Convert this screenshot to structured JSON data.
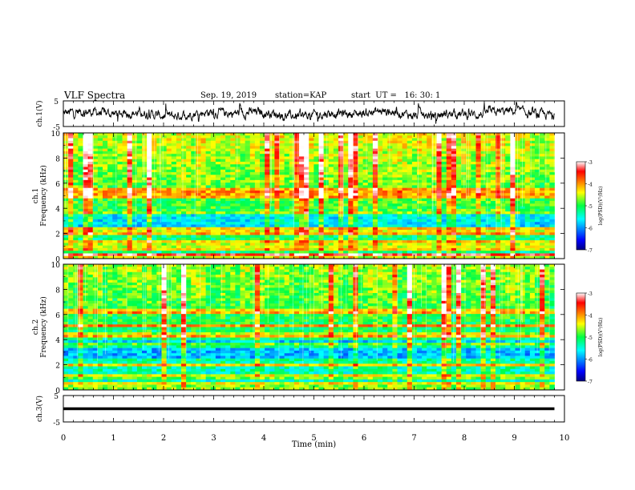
{
  "header": {
    "title": "VLF Spectra",
    "date": "Sep. 19, 2019",
    "station": "station=KAP",
    "start_ut": "start  UT =   16: 30: 1"
  },
  "chart_data": [
    {
      "type": "line",
      "name": "channel-1-waveform",
      "ylabel": "ch.1(V)",
      "ylim": [
        -5,
        5
      ],
      "yticks": [
        "5",
        "-5"
      ],
      "xlim": [
        0,
        10
      ],
      "signal_range_v": [
        -3,
        3
      ]
    },
    {
      "type": "heatmap",
      "name": "channel-1-spectrogram",
      "ylabel": "ch.1\nFrequency (kHz)",
      "ylim": [
        0,
        10
      ],
      "yticks": [
        "0",
        "2",
        "4",
        "6",
        "8",
        "10"
      ],
      "xlim": [
        0,
        9.8
      ],
      "colorbar": {
        "label": "log(PSD)(V²/Hz)",
        "range": [
          -7,
          -3
        ],
        "ticks": [
          "-3",
          "-4",
          "-5",
          "-6",
          "-7"
        ]
      },
      "bands_khz": [
        0.3,
        0.8,
        1.3,
        2.0,
        2.3,
        3.7,
        5.0,
        5.4
      ],
      "background_level": -5.3
    },
    {
      "type": "heatmap",
      "name": "channel-2-spectrogram",
      "ylabel": "ch.2\nFrequency (kHz)",
      "ylim": [
        0,
        10
      ],
      "yticks": [
        "0",
        "2",
        "4",
        "6",
        "8",
        "10"
      ],
      "xlim": [
        0,
        9.8
      ],
      "colorbar": {
        "label": "log(PSD)(V²/Hz)",
        "range": [
          -7,
          -3
        ],
        "ticks": [
          "-3",
          "-4",
          "-5",
          "-6",
          "-7"
        ]
      },
      "bands_khz": [
        0.5,
        1.1,
        2.0,
        3.6,
        4.3,
        5.1,
        6.2
      ],
      "background_level": -5.5
    },
    {
      "type": "line",
      "name": "channel-3-waveform",
      "ylabel": "ch.3(V)",
      "ylim": [
        -5,
        5
      ],
      "yticks": [
        "5",
        "-5"
      ],
      "xlim": [
        0,
        10
      ],
      "constant_value_v": 0,
      "xlabel": "Time (min)",
      "xticks": [
        "0",
        "1",
        "2",
        "3",
        "4",
        "5",
        "6",
        "7",
        "8",
        "9",
        "10"
      ]
    }
  ]
}
